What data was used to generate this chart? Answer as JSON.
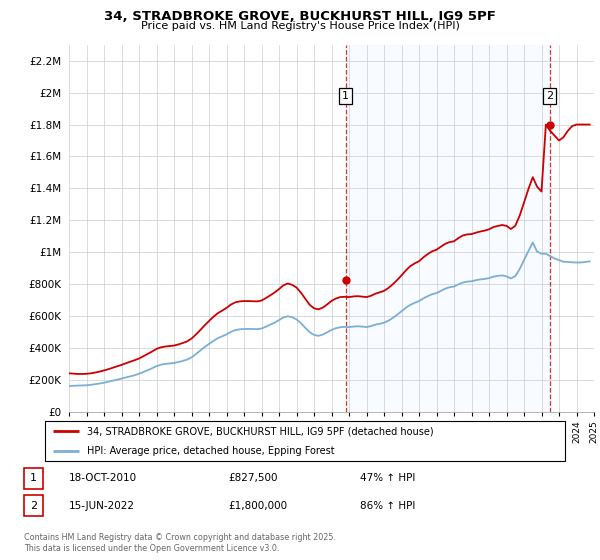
{
  "title_line1": "34, STRADBROKE GROVE, BUCKHURST HILL, IG9 5PF",
  "title_line2": "Price paid vs. HM Land Registry's House Price Index (HPI)",
  "footer": "Contains HM Land Registry data © Crown copyright and database right 2025.\nThis data is licensed under the Open Government Licence v3.0.",
  "legend_label_red": "34, STRADBROKE GROVE, BUCKHURST HILL, IG9 5PF (detached house)",
  "legend_label_blue": "HPI: Average price, detached house, Epping Forest",
  "sale1_date": "18-OCT-2010",
  "sale1_price": "£827,500",
  "sale1_hpi": "47% ↑ HPI",
  "sale2_date": "15-JUN-2022",
  "sale2_price": "£1,800,000",
  "sale2_hpi": "86% ↑ HPI",
  "red_color": "#cc0000",
  "blue_color": "#7bafd4",
  "shade_color": "#ddeeff",
  "ylim_max": 2300000,
  "yticks": [
    0,
    200000,
    400000,
    600000,
    800000,
    1000000,
    1200000,
    1400000,
    1600000,
    1800000,
    2000000,
    2200000
  ],
  "years": [
    1995.0,
    1995.25,
    1995.5,
    1995.75,
    1996.0,
    1996.25,
    1996.5,
    1996.75,
    1997.0,
    1997.25,
    1997.5,
    1997.75,
    1998.0,
    1998.25,
    1998.5,
    1998.75,
    1999.0,
    1999.25,
    1999.5,
    1999.75,
    2000.0,
    2000.25,
    2000.5,
    2000.75,
    2001.0,
    2001.25,
    2001.5,
    2001.75,
    2002.0,
    2002.25,
    2002.5,
    2002.75,
    2003.0,
    2003.25,
    2003.5,
    2003.75,
    2004.0,
    2004.25,
    2004.5,
    2004.75,
    2005.0,
    2005.25,
    2005.5,
    2005.75,
    2006.0,
    2006.25,
    2006.5,
    2006.75,
    2007.0,
    2007.25,
    2007.5,
    2007.75,
    2008.0,
    2008.25,
    2008.5,
    2008.75,
    2009.0,
    2009.25,
    2009.5,
    2009.75,
    2010.0,
    2010.25,
    2010.5,
    2010.75,
    2011.0,
    2011.25,
    2011.5,
    2011.75,
    2012.0,
    2012.25,
    2012.5,
    2012.75,
    2013.0,
    2013.25,
    2013.5,
    2013.75,
    2014.0,
    2014.25,
    2014.5,
    2014.75,
    2015.0,
    2015.25,
    2015.5,
    2015.75,
    2016.0,
    2016.25,
    2016.5,
    2016.75,
    2017.0,
    2017.25,
    2017.5,
    2017.75,
    2018.0,
    2018.25,
    2018.5,
    2018.75,
    2019.0,
    2019.25,
    2019.5,
    2019.75,
    2020.0,
    2020.25,
    2020.5,
    2020.75,
    2021.0,
    2021.25,
    2021.5,
    2021.75,
    2022.0,
    2022.25,
    2022.5,
    2022.75,
    2023.0,
    2023.25,
    2023.5,
    2023.75,
    2024.0,
    2024.25,
    2024.5,
    2024.75
  ],
  "hpi_values": [
    160000,
    162000,
    163000,
    164000,
    165000,
    168000,
    172000,
    176000,
    181000,
    187000,
    194000,
    200000,
    207000,
    214000,
    221000,
    228000,
    237000,
    248000,
    260000,
    272000,
    285000,
    294000,
    299000,
    302000,
    305000,
    311000,
    318000,
    326000,
    340000,
    360000,
    383000,
    405000,
    424000,
    443000,
    460000,
    472000,
    484000,
    500000,
    511000,
    516000,
    518000,
    519000,
    518000,
    517000,
    521000,
    532000,
    545000,
    558000,
    574000,
    590000,
    598000,
    592000,
    578000,
    555000,
    526000,
    498000,
    481000,
    475000,
    483000,
    497000,
    512000,
    523000,
    529000,
    531000,
    530000,
    533000,
    535000,
    533000,
    530000,
    536000,
    545000,
    551000,
    557000,
    570000,
    587000,
    607000,
    629000,
    651000,
    669000,
    682000,
    693000,
    710000,
    724000,
    736000,
    743000,
    757000,
    771000,
    780000,
    784000,
    798000,
    809000,
    815000,
    817000,
    824000,
    829000,
    832000,
    837000,
    846000,
    851000,
    854000,
    848000,
    835000,
    849000,
    893000,
    950000,
    1006000,
    1060000,
    1003000,
    990000,
    990000,
    975000,
    960000,
    950000,
    940000,
    938000,
    936000,
    935000,
    935000,
    938000,
    942000
  ],
  "red_values": [
    240000,
    238000,
    236000,
    236000,
    237000,
    240000,
    245000,
    251000,
    258000,
    266000,
    275000,
    284000,
    293000,
    303000,
    313000,
    322000,
    333000,
    347000,
    362000,
    377000,
    393000,
    403000,
    408000,
    411000,
    414000,
    421000,
    430000,
    440000,
    458000,
    483000,
    511000,
    541000,
    568000,
    594000,
    617000,
    633000,
    650000,
    671000,
    685000,
    691000,
    693000,
    693000,
    692000,
    691000,
    696000,
    712000,
    729000,
    747000,
    768000,
    792000,
    803000,
    795000,
    778000,
    746000,
    708000,
    670000,
    648000,
    641000,
    652000,
    672000,
    694000,
    709000,
    718000,
    720000,
    718000,
    722000,
    724000,
    721000,
    718000,
    726000,
    739000,
    748000,
    757000,
    775000,
    798000,
    825000,
    854000,
    885000,
    912000,
    929000,
    943000,
    967000,
    988000,
    1005000,
    1015000,
    1034000,
    1052000,
    1063000,
    1068000,
    1088000,
    1104000,
    1111000,
    1113000,
    1122000,
    1129000,
    1135000,
    1143000,
    1157000,
    1164000,
    1170000,
    1165000,
    1145000,
    1165000,
    1228000,
    1310000,
    1395000,
    1470000,
    1410000,
    1380000,
    1800000,
    1760000,
    1730000,
    1700000,
    1720000,
    1760000,
    1790000,
    1800000,
    1800000,
    1800000,
    1800000
  ],
  "sale1_x": 2010.8,
  "sale1_y": 827500,
  "sale2_x": 2022.46,
  "sale2_y": 1800000,
  "xmin": 1995,
  "xmax": 2025
}
